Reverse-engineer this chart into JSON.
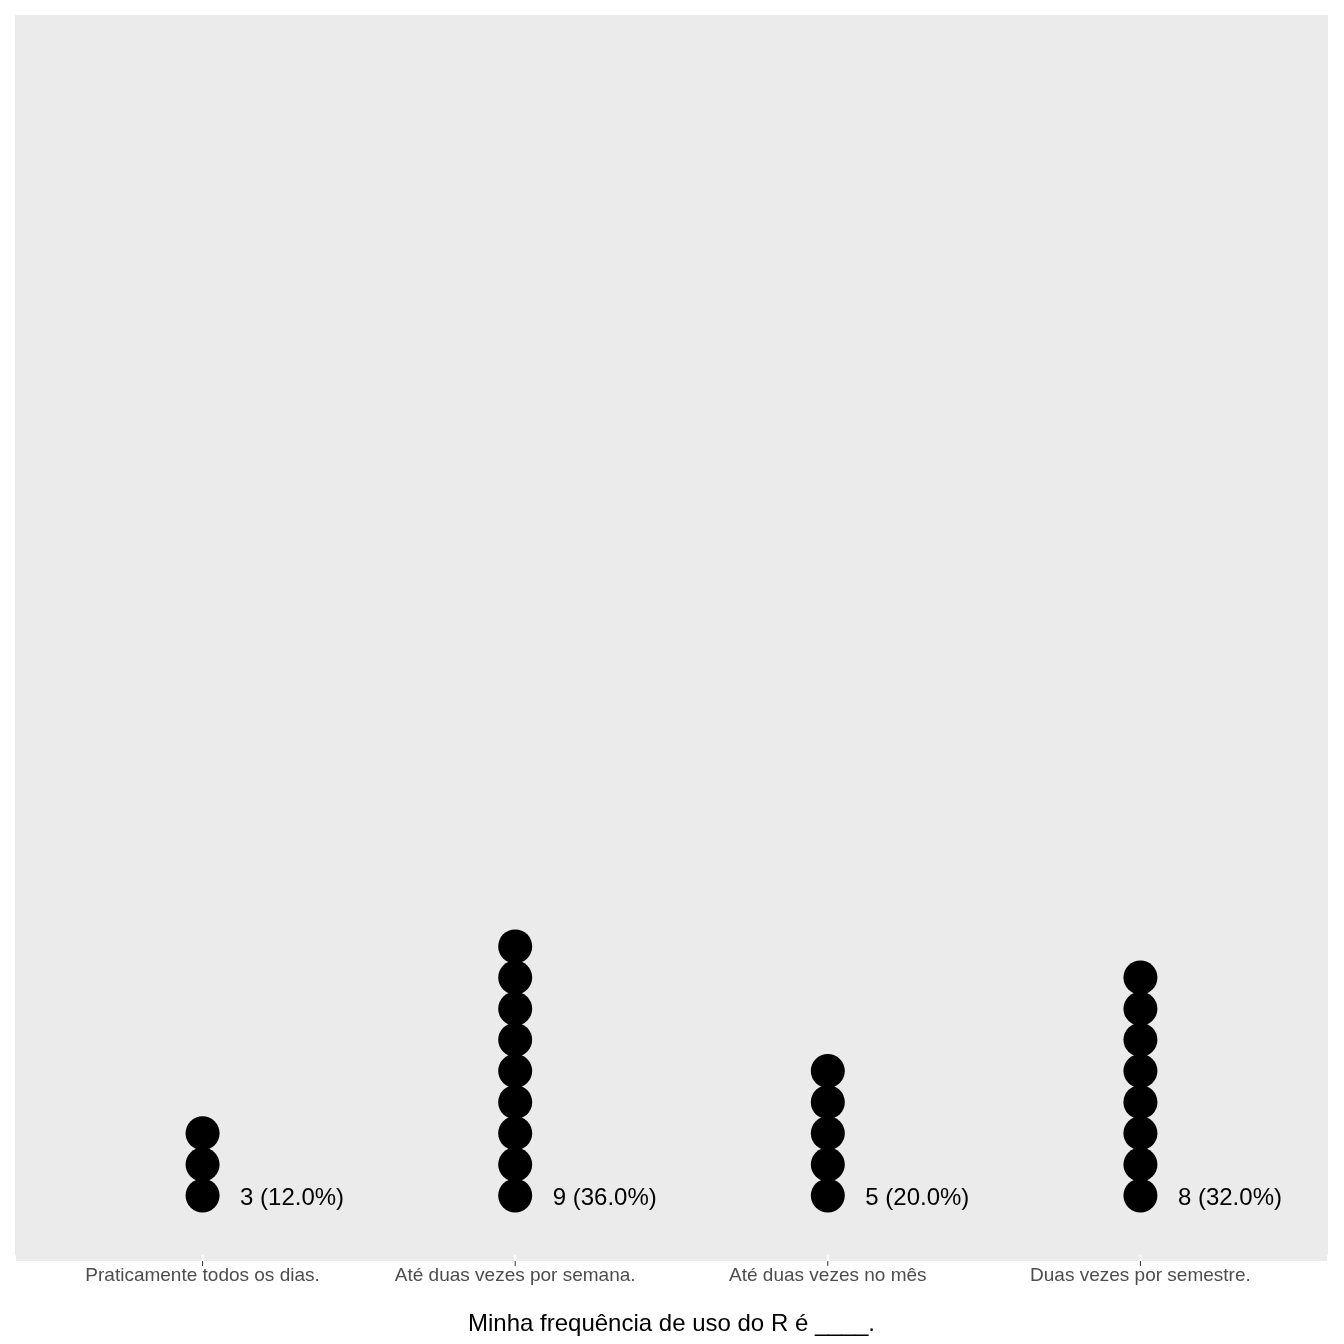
{
  "chart_data": {
    "type": "other",
    "xlabel": "Minha frequência de uso do R é ____.",
    "categories": [
      "Praticamente todos os dias.",
      "Até duas vezes por semana.",
      "Até duas vezes no mês",
      "Duas vezes por semestre."
    ],
    "values": [
      3,
      9,
      5,
      8
    ],
    "value_labels": [
      "3 (12.0%)",
      "9 (36.0%)",
      "5 (20.0%)",
      "8 (32.0%)"
    ],
    "color": "#000000"
  }
}
